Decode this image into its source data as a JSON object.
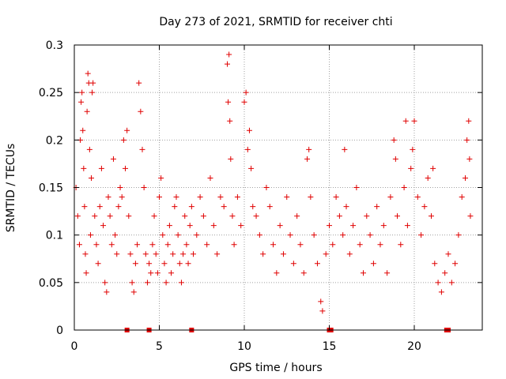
{
  "chart_data": {
    "type": "scatter",
    "title": "Day 273 of 2021, SRMTID for receiver chti",
    "xlabel": "GPS time / hours",
    "ylabel": "SRMTID / TECUs",
    "xlim": [
      0,
      24
    ],
    "ylim": [
      0,
      0.3
    ],
    "xticks": [
      0,
      5,
      10,
      15,
      20
    ],
    "xtick_labels": [
      "0",
      "5",
      "10",
      "15",
      "20"
    ],
    "yticks": [
      0,
      0.05,
      0.1,
      0.15,
      0.2,
      0.25,
      0.3
    ],
    "ytick_labels": [
      "0",
      "0.05",
      "0.1",
      "0.15",
      "0.2",
      "0.25",
      "0.3"
    ],
    "grid": true,
    "marker": "+",
    "color": "#e00000",
    "series": [
      {
        "name": "SRMTID",
        "points": [
          [
            0.1,
            0.15
          ],
          [
            0.2,
            0.12
          ],
          [
            0.3,
            0.09
          ],
          [
            0.35,
            0.2
          ],
          [
            0.4,
            0.24
          ],
          [
            0.45,
            0.25
          ],
          [
            0.5,
            0.21
          ],
          [
            0.55,
            0.17
          ],
          [
            0.6,
            0.13
          ],
          [
            0.65,
            0.08
          ],
          [
            0.7,
            0.06
          ],
          [
            0.75,
            0.23
          ],
          [
            0.8,
            0.27
          ],
          [
            0.85,
            0.26
          ],
          [
            0.9,
            0.19
          ],
          [
            0.95,
            0.1
          ],
          [
            1.0,
            0.16
          ],
          [
            1.05,
            0.25
          ],
          [
            1.1,
            0.26
          ],
          [
            1.2,
            0.12
          ],
          [
            1.3,
            0.09
          ],
          [
            1.4,
            0.07
          ],
          [
            1.5,
            0.13
          ],
          [
            1.6,
            0.17
          ],
          [
            1.7,
            0.11
          ],
          [
            1.8,
            0.05
          ],
          [
            1.9,
            0.04
          ],
          [
            2.0,
            0.14
          ],
          [
            2.1,
            0.12
          ],
          [
            2.2,
            0.09
          ],
          [
            2.3,
            0.18
          ],
          [
            2.4,
            0.1
          ],
          [
            2.5,
            0.08
          ],
          [
            2.6,
            0.13
          ],
          [
            2.7,
            0.15
          ],
          [
            2.8,
            0.14
          ],
          [
            2.9,
            0.2
          ],
          [
            3.0,
            0.17
          ],
          [
            3.1,
            0.21
          ],
          [
            3.2,
            0.12
          ],
          [
            3.3,
            0.08
          ],
          [
            3.4,
            0.05
          ],
          [
            3.5,
            0.04
          ],
          [
            3.6,
            0.07
          ],
          [
            3.7,
            0.09
          ],
          [
            3.8,
            0.26
          ],
          [
            3.9,
            0.23
          ],
          [
            4.0,
            0.19
          ],
          [
            4.1,
            0.15
          ],
          [
            4.2,
            0.08
          ],
          [
            4.3,
            0.05
          ],
          [
            4.4,
            0.07
          ],
          [
            4.5,
            0.06
          ],
          [
            4.6,
            0.09
          ],
          [
            4.7,
            0.12
          ],
          [
            4.8,
            0.08
          ],
          [
            4.9,
            0.06
          ],
          [
            5.0,
            0.14
          ],
          [
            5.1,
            0.16
          ],
          [
            5.2,
            0.1
          ],
          [
            5.3,
            0.07
          ],
          [
            5.4,
            0.05
          ],
          [
            5.5,
            0.09
          ],
          [
            5.6,
            0.11
          ],
          [
            5.7,
            0.06
          ],
          [
            5.8,
            0.08
          ],
          [
            5.9,
            0.13
          ],
          [
            6.0,
            0.14
          ],
          [
            6.1,
            0.1
          ],
          [
            6.2,
            0.07
          ],
          [
            6.3,
            0.05
          ],
          [
            6.4,
            0.08
          ],
          [
            6.5,
            0.12
          ],
          [
            6.6,
            0.09
          ],
          [
            6.7,
            0.07
          ],
          [
            6.8,
            0.11
          ],
          [
            6.9,
            0.13
          ],
          [
            7.0,
            0.08
          ],
          [
            7.2,
            0.1
          ],
          [
            7.4,
            0.14
          ],
          [
            7.6,
            0.12
          ],
          [
            7.8,
            0.09
          ],
          [
            8.0,
            0.16
          ],
          [
            8.2,
            0.11
          ],
          [
            8.4,
            0.08
          ],
          [
            8.6,
            0.14
          ],
          [
            8.8,
            0.13
          ],
          [
            9.0,
            0.28
          ],
          [
            9.05,
            0.24
          ],
          [
            9.1,
            0.29
          ],
          [
            9.15,
            0.22
          ],
          [
            9.2,
            0.18
          ],
          [
            9.3,
            0.12
          ],
          [
            9.4,
            0.09
          ],
          [
            9.6,
            0.14
          ],
          [
            9.8,
            0.11
          ],
          [
            10.0,
            0.24
          ],
          [
            10.1,
            0.25
          ],
          [
            10.2,
            0.19
          ],
          [
            10.3,
            0.21
          ],
          [
            10.4,
            0.17
          ],
          [
            10.5,
            0.13
          ],
          [
            10.7,
            0.12
          ],
          [
            10.9,
            0.1
          ],
          [
            11.1,
            0.08
          ],
          [
            11.3,
            0.15
          ],
          [
            11.5,
            0.13
          ],
          [
            11.7,
            0.09
          ],
          [
            11.9,
            0.06
          ],
          [
            12.1,
            0.11
          ],
          [
            12.3,
            0.08
          ],
          [
            12.5,
            0.14
          ],
          [
            12.7,
            0.1
          ],
          [
            12.9,
            0.07
          ],
          [
            13.1,
            0.12
          ],
          [
            13.3,
            0.09
          ],
          [
            13.5,
            0.06
          ],
          [
            13.7,
            0.18
          ],
          [
            13.8,
            0.19
          ],
          [
            13.9,
            0.14
          ],
          [
            14.1,
            0.1
          ],
          [
            14.3,
            0.07
          ],
          [
            14.5,
            0.03
          ],
          [
            14.6,
            0.02
          ],
          [
            14.8,
            0.08
          ],
          [
            15.0,
            0.11
          ],
          [
            15.2,
            0.09
          ],
          [
            15.4,
            0.14
          ],
          [
            15.6,
            0.12
          ],
          [
            15.8,
            0.1
          ],
          [
            15.9,
            0.19
          ],
          [
            16.0,
            0.13
          ],
          [
            16.2,
            0.08
          ],
          [
            16.4,
            0.11
          ],
          [
            16.6,
            0.15
          ],
          [
            16.8,
            0.09
          ],
          [
            17.0,
            0.06
          ],
          [
            17.2,
            0.12
          ],
          [
            17.4,
            0.1
          ],
          [
            17.6,
            0.07
          ],
          [
            17.8,
            0.13
          ],
          [
            18.0,
            0.09
          ],
          [
            18.2,
            0.11
          ],
          [
            18.4,
            0.06
          ],
          [
            18.6,
            0.14
          ],
          [
            18.8,
            0.2
          ],
          [
            18.9,
            0.18
          ],
          [
            19.0,
            0.12
          ],
          [
            19.2,
            0.09
          ],
          [
            19.4,
            0.15
          ],
          [
            19.5,
            0.22
          ],
          [
            19.6,
            0.11
          ],
          [
            19.8,
            0.17
          ],
          [
            19.9,
            0.19
          ],
          [
            20.0,
            0.22
          ],
          [
            20.2,
            0.14
          ],
          [
            20.4,
            0.1
          ],
          [
            20.6,
            0.13
          ],
          [
            20.8,
            0.16
          ],
          [
            21.0,
            0.12
          ],
          [
            21.1,
            0.17
          ],
          [
            21.2,
            0.07
          ],
          [
            21.4,
            0.05
          ],
          [
            21.6,
            0.04
          ],
          [
            21.8,
            0.06
          ],
          [
            22.0,
            0.08
          ],
          [
            22.2,
            0.05
          ],
          [
            22.4,
            0.07
          ],
          [
            22.6,
            0.1
          ],
          [
            22.8,
            0.14
          ],
          [
            23.0,
            0.16
          ],
          [
            23.1,
            0.2
          ],
          [
            23.2,
            0.22
          ],
          [
            23.25,
            0.18
          ],
          [
            23.3,
            0.12
          ]
        ]
      }
    ],
    "gap_markers": [
      3.1,
      4.4,
      6.9,
      15.0,
      15.1,
      21.9,
      22.0
    ]
  }
}
